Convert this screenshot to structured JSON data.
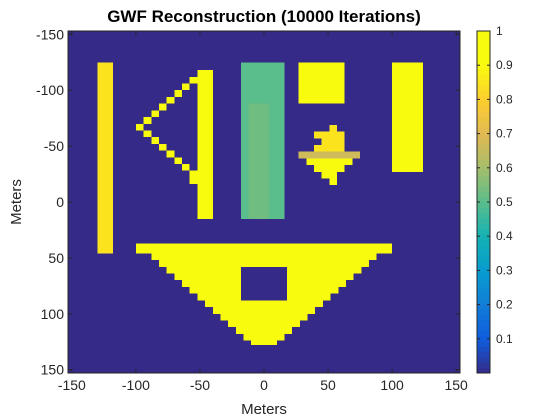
{
  "chart_data": {
    "type": "heatmap",
    "title": "GWF Reconstruction (10000 Iterations)",
    "xlabel": "Meters",
    "ylabel": "Meters",
    "xlim": [
      -153,
      153
    ],
    "ylim": [
      -153,
      153
    ],
    "y_direction": "reversed",
    "x_ticks": [
      -150,
      -100,
      -50,
      0,
      50,
      100,
      150
    ],
    "y_ticks": [
      -150,
      -100,
      -50,
      0,
      50,
      100,
      150
    ],
    "x_tick_labels": [
      "-150",
      "-100",
      "-50",
      "0",
      "50",
      "100",
      "150"
    ],
    "y_tick_labels": [
      "-150",
      "-100",
      "-50",
      "0",
      "50",
      "100",
      "150"
    ],
    "colormap": "parula",
    "clim": [
      0,
      1
    ],
    "colorbar_ticks": [
      0.1,
      0.2,
      0.3,
      0.4,
      0.5,
      0.6,
      0.7,
      0.8,
      0.9,
      1
    ],
    "colorbar_tick_labels": [
      "0.1",
      "0.2",
      "0.3",
      "0.4",
      "0.5",
      "0.6",
      "0.7",
      "0.8",
      "0.9",
      "1"
    ],
    "background_value": 0,
    "shapes": [
      {
        "name": "left-bar",
        "value": 0.85,
        "rects": [
          [
            -130,
            -125,
            -118,
            46
          ]
        ]
      },
      {
        "name": "right-bar",
        "value": 0.99,
        "rects": [
          [
            100,
            -125,
            124,
            -27
          ]
        ]
      },
      {
        "name": "square",
        "value": 0.9,
        "rects": [
          [
            27,
            -125,
            63,
            -88
          ]
        ]
      },
      {
        "name": "teal-rect",
        "value": 0.5,
        "rects": [
          [
            -18,
            -125,
            16,
            15
          ]
        ]
      },
      {
        "name": "teal-inner",
        "value": 0.53,
        "rects": [
          [
            -12,
            -88,
            4,
            15
          ]
        ]
      },
      {
        "name": "diamond-top",
        "value": 0.85,
        "rects": [
          [
            51,
            -57,
            63,
            -45
          ],
          [
            45,
            -63,
            57,
            -51
          ],
          [
            39,
            -51,
            51,
            -45
          ],
          [
            51,
            -69,
            57,
            -63
          ],
          [
            39,
            -63,
            63,
            -57
          ]
        ]
      },
      {
        "name": "diamond-bottom",
        "value": 0.9,
        "rects": [
          [
            33,
            -39,
            69,
            -33
          ],
          [
            39,
            -33,
            63,
            -27
          ],
          [
            45,
            -27,
            57,
            -21
          ],
          [
            51,
            -21,
            57,
            -15
          ]
        ]
      },
      {
        "name": "green-band",
        "value": 0.67,
        "rects": [
          [
            27,
            -45,
            75,
            -39
          ]
        ]
      },
      {
        "name": "left-triangle",
        "value": 1.0,
        "rects": [
          [
            -52,
            -118,
            -40,
            15
          ],
          [
            -58,
            -112,
            -52,
            -106
          ],
          [
            -64,
            -106,
            -58,
            -100
          ],
          [
            -70,
            -100,
            -64,
            -94
          ],
          [
            -76,
            -94,
            -70,
            -88
          ],
          [
            -82,
            -88,
            -76,
            -82
          ],
          [
            -88,
            -82,
            -82,
            -76
          ],
          [
            -94,
            -76,
            -88,
            -70
          ],
          [
            -100,
            -70,
            -94,
            -64
          ],
          [
            -94,
            -64,
            -88,
            -58
          ],
          [
            -88,
            -58,
            -82,
            -52
          ],
          [
            -82,
            -52,
            -76,
            -46
          ],
          [
            -76,
            -46,
            -70,
            -40
          ],
          [
            -70,
            -40,
            -64,
            -34
          ],
          [
            -64,
            -34,
            -58,
            -28
          ],
          [
            -58,
            -28,
            -52,
            -22
          ],
          [
            -58,
            -22,
            -52,
            -16
          ]
        ]
      },
      {
        "name": "bottom-triangle",
        "value": 1.0,
        "rects": [
          [
            -100,
            37,
            100,
            46
          ],
          [
            -88,
            46,
            88,
            52
          ],
          [
            -82,
            52,
            82,
            58
          ],
          [
            -76,
            58,
            76,
            64
          ],
          [
            -70,
            64,
            70,
            70
          ],
          [
            -64,
            70,
            64,
            76
          ],
          [
            -58,
            76,
            58,
            82
          ],
          [
            -52,
            82,
            52,
            88
          ],
          [
            -46,
            88,
            46,
            94
          ],
          [
            -40,
            94,
            40,
            100
          ],
          [
            -34,
            100,
            34,
            106
          ],
          [
            -28,
            106,
            28,
            112
          ],
          [
            -22,
            112,
            22,
            118
          ],
          [
            -16,
            118,
            16,
            124
          ],
          [
            -10,
            124,
            10,
            128
          ]
        ]
      },
      {
        "name": "bottom-hole",
        "value": 0.0,
        "rects": [
          [
            -18,
            58,
            18,
            88
          ]
        ]
      }
    ]
  }
}
